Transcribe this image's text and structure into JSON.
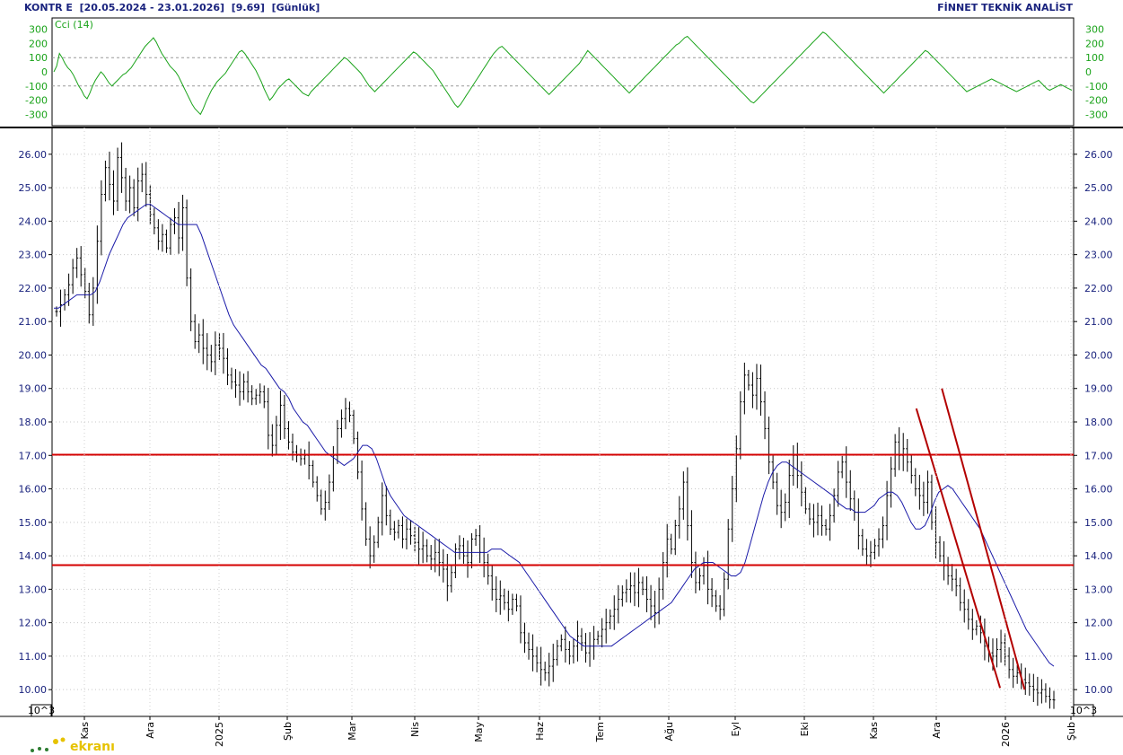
{
  "header": {
    "symbol": "KONTR E",
    "range": "[20.05.2024 - 23.01.2026]",
    "last": "[9.69]",
    "period": "[Günlük]",
    "brand": "FİNNET TEKNİK ANALİST"
  },
  "logo_text": "ekranı",
  "colors": {
    "price_axis": "#1a237e",
    "cci_line": "#1aa31a",
    "ma_line": "#1a1aa8",
    "support": "#d40000",
    "trend": "#b30000",
    "bars": "#000000"
  },
  "chart_data": [
    {
      "type": "line",
      "label": "Cci (14)",
      "ylim": [
        -380,
        380
      ],
      "yticks": [
        300,
        200,
        100,
        0,
        -100,
        -200,
        -300
      ],
      "reference_lines": [
        100,
        -100
      ],
      "values": [
        0,
        40,
        130,
        100,
        60,
        30,
        10,
        -20,
        -60,
        -100,
        -130,
        -170,
        -190,
        -150,
        -100,
        -60,
        -30,
        0,
        -20,
        -50,
        -80,
        -100,
        -80,
        -60,
        -40,
        -20,
        -10,
        10,
        30,
        60,
        90,
        120,
        150,
        180,
        200,
        220,
        240,
        210,
        170,
        130,
        100,
        70,
        40,
        20,
        0,
        -30,
        -70,
        -110,
        -150,
        -190,
        -230,
        -260,
        -280,
        -300,
        -260,
        -210,
        -170,
        -130,
        -100,
        -70,
        -50,
        -30,
        -10,
        20,
        50,
        80,
        110,
        140,
        150,
        130,
        100,
        70,
        40,
        10,
        -30,
        -70,
        -120,
        -160,
        -200,
        -180,
        -150,
        -120,
        -100,
        -80,
        -60,
        -50,
        -70,
        -90,
        -110,
        -130,
        -150,
        -160,
        -170,
        -140,
        -120,
        -100,
        -80,
        -60,
        -40,
        -20,
        0,
        20,
        40,
        60,
        80,
        100,
        90,
        70,
        50,
        30,
        10,
        -10,
        -40,
        -70,
        -100,
        -120,
        -140,
        -120,
        -100,
        -80,
        -60,
        -40,
        -20,
        0,
        20,
        40,
        60,
        80,
        100,
        120,
        140,
        130,
        110,
        90,
        70,
        50,
        30,
        10,
        -20,
        -50,
        -80,
        -110,
        -140,
        -170,
        -200,
        -230,
        -250,
        -230,
        -200,
        -170,
        -140,
        -110,
        -80,
        -50,
        -20,
        10,
        40,
        70,
        100,
        130,
        150,
        170,
        180,
        160,
        140,
        120,
        100,
        80,
        60,
        40,
        20,
        0,
        -20,
        -40,
        -60,
        -80,
        -100,
        -120,
        -140,
        -160,
        -140,
        -120,
        -100,
        -80,
        -60,
        -40,
        -20,
        0,
        20,
        40,
        60,
        90,
        120,
        150,
        130,
        110,
        90,
        70,
        50,
        30,
        10,
        -10,
        -30,
        -50,
        -70,
        -90,
        -110,
        -130,
        -150,
        -130,
        -110,
        -90,
        -70,
        -50,
        -30,
        -10,
        10,
        30,
        50,
        70,
        90,
        110,
        130,
        150,
        170,
        190,
        200,
        220,
        240,
        250,
        230,
        210,
        190,
        170,
        150,
        130,
        110,
        90,
        70,
        50,
        30,
        10,
        -10,
        -30,
        -50,
        -70,
        -90,
        -110,
        -130,
        -150,
        -170,
        -190,
        -210,
        -220,
        -200,
        -180,
        -160,
        -140,
        -120,
        -100,
        -80,
        -60,
        -40,
        -20,
        0,
        20,
        40,
        60,
        80,
        100,
        120,
        140,
        160,
        180,
        200,
        220,
        240,
        260,
        280,
        270,
        250,
        230,
        210,
        190,
        170,
        150,
        130,
        110,
        90,
        70,
        50,
        30,
        10,
        -10,
        -30,
        -50,
        -70,
        -90,
        -110,
        -130,
        -150,
        -130,
        -110,
        -90,
        -70,
        -50,
        -30,
        -10,
        10,
        30,
        50,
        70,
        90,
        110,
        130,
        150,
        140,
        120,
        100,
        80,
        60,
        40,
        20,
        0,
        -20,
        -40,
        -60,
        -80,
        -100,
        -120,
        -140,
        -130,
        -120,
        -110,
        -100,
        -90,
        -80,
        -70,
        -60,
        -50,
        -60,
        -70,
        -80,
        -90,
        -100,
        -110,
        -120,
        -130,
        -140,
        -130,
        -120,
        -110,
        -100,
        -90,
        -80,
        -70,
        -60,
        -80,
        -100,
        -120,
        -130,
        -120,
        -110,
        -100,
        -90,
        -100,
        -110,
        -120,
        -130
      ]
    },
    {
      "type": "ohlc",
      "unit_label": "10^3",
      "ylim": [
        9.2,
        26.8
      ],
      "yticks": [
        "26.00",
        "25.00",
        "24.00",
        "23.00",
        "22.00",
        "21.00",
        "20.00",
        "19.00",
        "18.00",
        "17.00",
        "16.00",
        "15.00",
        "14.00",
        "13.00",
        "12.00",
        "11.00",
        "10.00"
      ],
      "x_labels": [
        "Kas",
        "Ara",
        "2025",
        "Şub",
        "Mar",
        "Nis",
        "May",
        "Haz",
        "Tem",
        "Ağu",
        "Eyl",
        "Eki",
        "Kas",
        "Ara",
        "2026",
        "Şub"
      ],
      "horizontal_lines": [
        17.02,
        13.72
      ],
      "trend_lines": [
        {
          "from": [
            0.871,
            19.0
          ],
          "to": [
            0.952,
            10.0
          ]
        },
        {
          "from": [
            0.846,
            18.4
          ],
          "to": [
            0.928,
            10.05
          ]
        }
      ],
      "closes": [
        21.3,
        21.5,
        21.8,
        22.1,
        22.6,
        22.9,
        22.4,
        21.9,
        21.2,
        22.0,
        23.4,
        24.8,
        25.6,
        25.1,
        24.6,
        25.9,
        25.3,
        24.6,
        25.0,
        24.4,
        25.2,
        25.4,
        24.8,
        24.2,
        23.8,
        23.4,
        23.6,
        23.2,
        23.9,
        24.1,
        23.5,
        24.4,
        22.3,
        21.0,
        20.4,
        20.6,
        20.2,
        20.0,
        19.8,
        20.3,
        20.2,
        19.9,
        19.4,
        19.2,
        19.1,
        18.9,
        19.2,
        18.9,
        18.7,
        18.8,
        18.9,
        18.6,
        17.6,
        17.3,
        17.9,
        18.5,
        17.8,
        17.4,
        17.1,
        17.0,
        16.9,
        17.0,
        16.7,
        16.2,
        15.8,
        15.4,
        15.6,
        16.2,
        17.0,
        17.8,
        18.1,
        18.4,
        18.2,
        17.5,
        16.5,
        15.4,
        14.5,
        14.0,
        14.4,
        15.0,
        15.8,
        15.2,
        14.8,
        14.7,
        14.9,
        14.5,
        14.8,
        14.6,
        14.4,
        14.2,
        14.3,
        14.0,
        13.9,
        14.1,
        13.8,
        13.6,
        13.1,
        13.5,
        14.2,
        14.3,
        14.0,
        13.8,
        14.5,
        14.6,
        14.1,
        13.8,
        13.4,
        13.0,
        12.7,
        12.8,
        12.6,
        12.4,
        12.7,
        12.5,
        11.7,
        11.4,
        11.2,
        11.0,
        10.8,
        10.6,
        10.5,
        10.7,
        10.9,
        11.3,
        11.5,
        11.2,
        11.0,
        11.3,
        11.6,
        11.4,
        11.1,
        11.3,
        11.5,
        11.6,
        11.8,
        12.0,
        12.2,
        12.4,
        12.7,
        12.9,
        13.0,
        13.1,
        12.9,
        13.2,
        13.0,
        12.7,
        12.5,
        12.3,
        13.0,
        13.8,
        14.5,
        14.2,
        14.9,
        15.4,
        16.2,
        14.9,
        13.8,
        13.2,
        13.4,
        13.7,
        13.0,
        12.8,
        12.5,
        12.4,
        13.3,
        14.8,
        16.0,
        17.2,
        18.6,
        19.4,
        19.1,
        18.8,
        19.3,
        18.6,
        17.8,
        16.8,
        16.2,
        15.5,
        15.3,
        15.6,
        16.4,
        17.0,
        16.4,
        15.9,
        15.4,
        15.1,
        15.0,
        15.2,
        14.9,
        14.8,
        15.2,
        15.8,
        16.5,
        16.8,
        16.2,
        15.7,
        15.3,
        14.6,
        14.2,
        14.0,
        14.1,
        14.3,
        14.5,
        14.9,
        15.8,
        16.6,
        17.4,
        17.0,
        17.2,
        16.8,
        16.4,
        16.0,
        15.8,
        15.6,
        16.2,
        15.0,
        14.4,
        14.0,
        13.7,
        13.4,
        13.3,
        13.1,
        12.6,
        12.4,
        12.1,
        11.8,
        11.9,
        11.7,
        11.3,
        11.1,
        11.0,
        11.2,
        11.4,
        11.0,
        10.6,
        10.4,
        10.5,
        10.3,
        10.2,
        10.1,
        10.0,
        9.9,
        10.0,
        9.8,
        9.7,
        9.69
      ],
      "moving_average": [
        21.4,
        21.4,
        21.5,
        21.6,
        21.7,
        21.8,
        21.8,
        21.8,
        21.8,
        21.9,
        22.2,
        22.6,
        23.0,
        23.3,
        23.6,
        23.9,
        24.1,
        24.2,
        24.3,
        24.4,
        24.5,
        24.5,
        24.4,
        24.3,
        24.2,
        24.1,
        24.0,
        23.9,
        23.9,
        23.9,
        23.9,
        23.9,
        23.6,
        23.2,
        22.8,
        22.4,
        22.0,
        21.6,
        21.2,
        20.9,
        20.7,
        20.5,
        20.3,
        20.1,
        19.9,
        19.7,
        19.6,
        19.4,
        19.2,
        19.0,
        18.9,
        18.7,
        18.4,
        18.2,
        18.0,
        17.9,
        17.7,
        17.5,
        17.3,
        17.1,
        17.0,
        16.9,
        16.8,
        16.7,
        16.8,
        16.9,
        17.1,
        17.3,
        17.3,
        17.2,
        16.9,
        16.5,
        16.1,
        15.8,
        15.6,
        15.4,
        15.2,
        15.1,
        15.0,
        14.9,
        14.8,
        14.7,
        14.6,
        14.5,
        14.4,
        14.3,
        14.2,
        14.1,
        14.1,
        14.1,
        14.1,
        14.1,
        14.1,
        14.1,
        14.1,
        14.2,
        14.2,
        14.2,
        14.1,
        14.0,
        13.9,
        13.8,
        13.6,
        13.4,
        13.2,
        13.0,
        12.8,
        12.6,
        12.4,
        12.2,
        12.0,
        11.8,
        11.6,
        11.5,
        11.4,
        11.3,
        11.3,
        11.3,
        11.3,
        11.3,
        11.3,
        11.3,
        11.4,
        11.5,
        11.6,
        11.7,
        11.8,
        11.9,
        12.0,
        12.1,
        12.2,
        12.3,
        12.4,
        12.5,
        12.6,
        12.8,
        13.0,
        13.2,
        13.4,
        13.6,
        13.7,
        13.8,
        13.8,
        13.8,
        13.7,
        13.6,
        13.5,
        13.4,
        13.4,
        13.5,
        13.8,
        14.3,
        14.8,
        15.3,
        15.8,
        16.2,
        16.5,
        16.7,
        16.8,
        16.8,
        16.7,
        16.6,
        16.5,
        16.4,
        16.3,
        16.2,
        16.1,
        16.0,
        15.9,
        15.8,
        15.6,
        15.5,
        15.4,
        15.4,
        15.3,
        15.3,
        15.3,
        15.4,
        15.5,
        15.7,
        15.8,
        15.9,
        15.9,
        15.8,
        15.6,
        15.3,
        15.0,
        14.8,
        14.8,
        14.9,
        15.2,
        15.6,
        15.9,
        16.0,
        16.1,
        16.0,
        15.8,
        15.6,
        15.4,
        15.2,
        15.0,
        14.8,
        14.5,
        14.2,
        13.9,
        13.6,
        13.3,
        13.0,
        12.7,
        12.4,
        12.1,
        11.8,
        11.6,
        11.4,
        11.2,
        11.0,
        10.8,
        10.7
      ]
    }
  ]
}
